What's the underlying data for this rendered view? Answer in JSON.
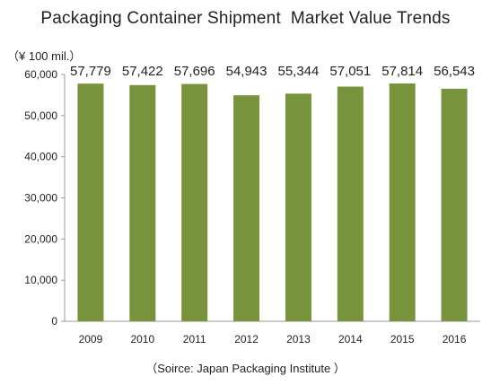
{
  "chart_data": {
    "type": "bar",
    "title": "Packaging Container Shipment  Market Value Trends",
    "unit_label": "（¥ 100 mil.）",
    "source": "（Soirce: Japan Packaging Institute ）",
    "categories": [
      "2009",
      "2010",
      "2011",
      "2012",
      "2013",
      "2014",
      "2015",
      "2016"
    ],
    "values": [
      57779,
      57422,
      57696,
      54943,
      55344,
      57051,
      57814,
      56543
    ],
    "value_labels": [
      "57,779",
      "57,422",
      "57,696",
      "54,943",
      "55,344",
      "57,051",
      "57,814",
      "56,543"
    ],
    "ylim": [
      0,
      60000
    ],
    "yticks": [
      "0",
      "10,000",
      "20,000",
      "30,000",
      "40,000",
      "50,000",
      "60,000"
    ],
    "ytick_values": [
      0,
      10000,
      20000,
      30000,
      40000,
      50000,
      60000
    ],
    "bar_color": "#77933c",
    "grid": false,
    "legend": false
  }
}
